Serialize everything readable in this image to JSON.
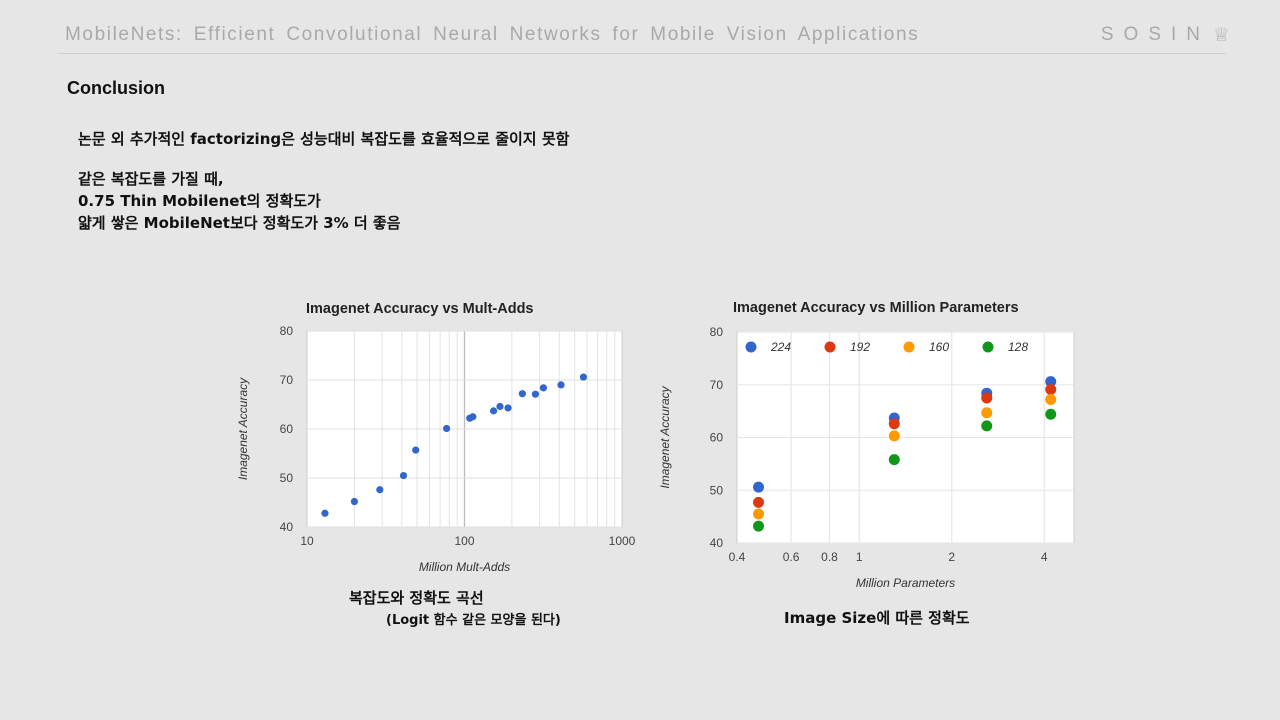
{
  "header": {
    "title": "MobileNets:  Efficient  Convolutional  Neural  Networks  for  Mobile  Vision  Applications",
    "brand": "SOSIN",
    "brand_icon": "crown-icon"
  },
  "slide": {
    "section_title": "Conclusion",
    "line1": "논문 외 추가적인 factorizing은 성능대비 복잡도를 효율적으로 줄이지 못함",
    "line2": "같은 복잡도를 가질 때,",
    "line3": "0.75 Thin Mobilenet의 정확도가",
    "line4": "얇게 쌓은 MobileNet보다 정확도가  3% 더 좋음",
    "caption_left": "복잡도와 정확도 곡선",
    "caption_left_sub": "(Logit 함수 같은 모양을 된다)",
    "caption_right": "Image Size에 따른 정확도"
  },
  "colors": {
    "background": "#e6e6e6",
    "blue": "#3366cc",
    "red": "#dc3912",
    "orange": "#ff9900",
    "green": "#109618"
  },
  "chart_data": [
    {
      "type": "scatter",
      "title": "Imagenet Accuracy vs Mult-Adds",
      "xlabel": "Million Mult-Adds",
      "ylabel": "Imagenet Accuracy",
      "xscale": "log",
      "xlim": [
        10,
        1000
      ],
      "ylim": [
        40,
        80
      ],
      "x_ticks": [
        "10",
        "100",
        "1000"
      ],
      "y_ticks": [
        "40",
        "50",
        "60",
        "70",
        "80"
      ],
      "grid": true,
      "series": [
        {
          "points": [
            [
              13,
              42.8
            ],
            [
              20,
              45.2
            ],
            [
              29,
              47.6
            ],
            [
              41,
              50.5
            ],
            [
              49,
              55.7
            ],
            [
              77,
              60.1
            ],
            [
              108,
              62.2
            ],
            [
              113,
              62.5
            ],
            [
              153,
              63.7
            ],
            [
              168,
              64.6
            ],
            [
              189,
              64.3
            ],
            [
              233,
              67.2
            ],
            [
              282,
              67.1
            ],
            [
              317,
              68.4
            ],
            [
              410,
              69.0
            ],
            [
              569,
              70.6
            ]
          ]
        }
      ]
    },
    {
      "type": "scatter",
      "title": "Imagenet Accuracy vs Million Parameters",
      "xlabel": "Million Parameters",
      "ylabel": "Imagenet Accuracy",
      "xscale": "log",
      "xlim": [
        0.4,
        5
      ],
      "ylim": [
        40,
        80
      ],
      "x_ticks": [
        "0.4",
        "0.6",
        "0.8",
        "1",
        "2",
        "4"
      ],
      "y_ticks": [
        "40",
        "50",
        "60",
        "70",
        "80"
      ],
      "grid": true,
      "legend_position": "top",
      "series": [
        {
          "name": "224",
          "color": "#3366cc",
          "points": [
            [
              0.47,
              50.6
            ],
            [
              1.3,
              63.7
            ],
            [
              2.6,
              68.4
            ],
            [
              4.2,
              70.6
            ]
          ]
        },
        {
          "name": "192",
          "color": "#dc3912",
          "points": [
            [
              0.47,
              47.7
            ],
            [
              1.3,
              62.6
            ],
            [
              2.6,
              67.5
            ],
            [
              4.2,
              69.1
            ]
          ]
        },
        {
          "name": "160",
          "color": "#ff9900",
          "points": [
            [
              0.47,
              45.5
            ],
            [
              1.3,
              60.3
            ],
            [
              2.6,
              64.7
            ],
            [
              4.2,
              67.2
            ]
          ]
        },
        {
          "name": "128",
          "color": "#109618",
          "points": [
            [
              0.47,
              43.2
            ],
            [
              1.3,
              55.8
            ],
            [
              2.6,
              62.2
            ],
            [
              4.2,
              64.4
            ]
          ]
        }
      ]
    }
  ]
}
